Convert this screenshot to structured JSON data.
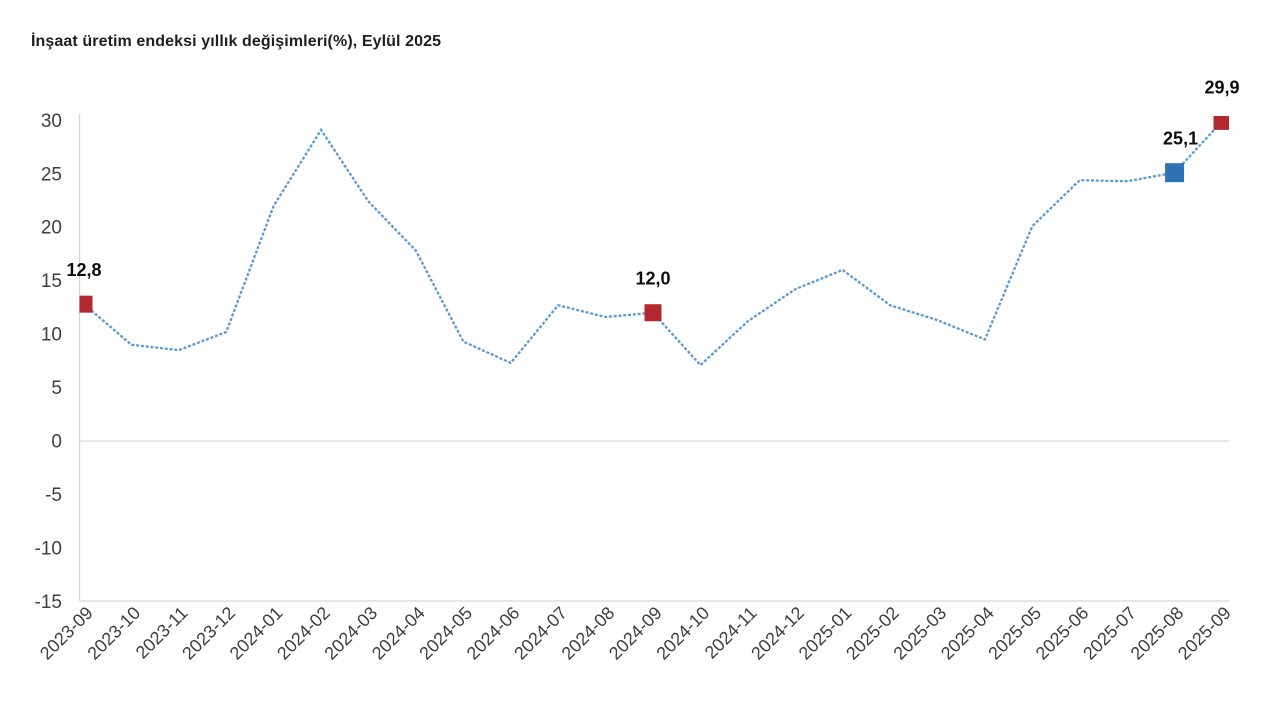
{
  "title": "İnşaat üretim endeksi yıllık değişimleri(%), Eylül 2025",
  "chart_data": {
    "type": "line",
    "title": "İnşaat üretim endeksi yıllık değişimleri(%), Eylül 2025",
    "xlabel": "",
    "ylabel": "",
    "categories": [
      "2023-09",
      "2023-10",
      "2023-11",
      "2023-12",
      "2024-01",
      "2024-02",
      "2024-03",
      "2024-04",
      "2024-05",
      "2024-06",
      "2024-07",
      "2024-08",
      "2024-09",
      "2024-10",
      "2024-11",
      "2024-12",
      "2025-01",
      "2025-02",
      "2025-03",
      "2025-04",
      "2025-05",
      "2025-06",
      "2025-07",
      "2025-08",
      "2025-09"
    ],
    "values": [
      12.8,
      9.0,
      8.5,
      10.2,
      22.0,
      29.1,
      22.4,
      17.8,
      9.3,
      7.3,
      12.7,
      11.6,
      12.0,
      7.1,
      11.2,
      14.2,
      16.0,
      12.7,
      11.3,
      9.5,
      20.1,
      24.4,
      24.3,
      25.1,
      29.9
    ],
    "ylim": [
      -15,
      30
    ],
    "yticks": [
      30,
      25,
      20,
      15,
      10,
      5,
      0,
      -5,
      -10,
      -15
    ],
    "grid": "horizontal line at 0 only, light gray; left and bottom axis lines only",
    "legend": "none",
    "line_color": "#5b9bd5",
    "line_style": "dashed",
    "marked_points": [
      {
        "index": 0,
        "category": "2023-09",
        "value": 12.8,
        "label": "12,8",
        "marker_color": "#b2282e",
        "marker": "square"
      },
      {
        "index": 12,
        "category": "2024-09",
        "value": 12.0,
        "label": "12,0",
        "marker_color": "#b2282e",
        "marker": "square"
      },
      {
        "index": 23,
        "category": "2025-08",
        "value": 25.1,
        "label": "25,1",
        "marker_color": "#2e74b5",
        "marker": "square"
      },
      {
        "index": 24,
        "category": "2025-09",
        "value": 29.9,
        "label": "29,9",
        "marker_color": "#b2282e",
        "marker": "square"
      }
    ]
  }
}
